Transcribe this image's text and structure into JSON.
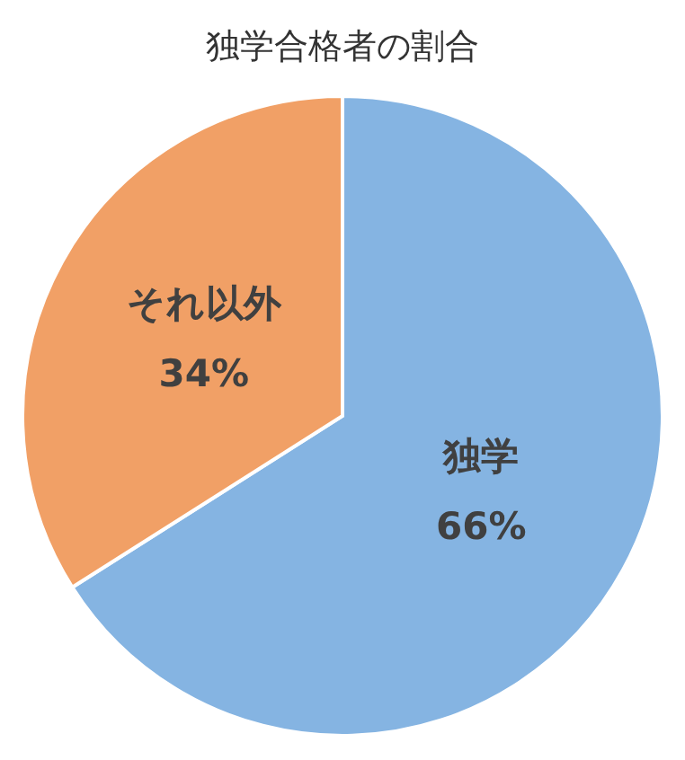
{
  "chart_data": {
    "type": "pie",
    "title": "独学合格者の割合",
    "categories": [
      "独学",
      "それ以外"
    ],
    "values": [
      66,
      34
    ],
    "value_labels": [
      "66%",
      "34%"
    ],
    "colors": [
      "#85b4e2",
      "#f1a066"
    ],
    "legend": false
  }
}
